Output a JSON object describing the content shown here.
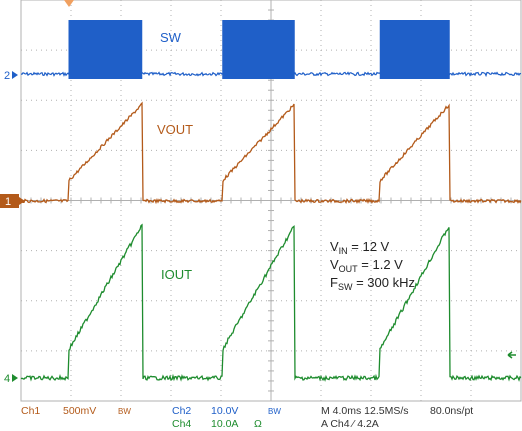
{
  "colors": {
    "ch1": "#b35a1a",
    "ch2": "#1f5fc8",
    "ch4": "#1e8c2e",
    "grid": "#b0b0b0",
    "text_dark": "#333333",
    "trigger_marker": "#f0a060"
  },
  "channel_markers": {
    "ch1": "1",
    "ch2": "2",
    "ch4": "4"
  },
  "labels": {
    "sw": "SW",
    "vout": "VOUT",
    "iout": "IOUT"
  },
  "conditions": {
    "vin_main": "V",
    "vin_sub": "IN",
    "vin_value": " = 12 V",
    "vout_main": "V",
    "vout_sub": "OUT",
    "vout_value": " = 1.2 V",
    "fsw_main": "F",
    "fsw_sub": "SW",
    "fsw_value": " = 300 kHz"
  },
  "status_bar": {
    "ch1_name": "Ch1",
    "ch1_scale": "500mV",
    "ch1_bw": "BW",
    "ch2_name": "Ch2",
    "ch2_scale": "10.0V",
    "ch2_bw": "BW",
    "ch4_name": "Ch4",
    "ch4_scale": "10.0A",
    "ch4_unit": "Ω",
    "timebase": "M 4.0ms 12.5MS/s",
    "record": "80.0ns/pt",
    "trigger": "A  Ch4  ⁄  4.2A"
  },
  "chart_data": {
    "type": "line",
    "title": "",
    "xlabel": "",
    "ylabel": "",
    "x_divisions": 10,
    "y_divisions": 8,
    "time_per_div_ms": 4.0,
    "series": [
      {
        "name": "SW",
        "color": "#1f5fc8",
        "description": "switch node: bursts of switching between low and high"
      },
      {
        "name": "VOUT",
        "color": "#b35a1a",
        "description": "output voltage ramps up during each burst, then drops"
      },
      {
        "name": "IOUT",
        "color": "#1e8c2e",
        "description": "output current ramps up linearly during each burst, then drops"
      }
    ],
    "bursts_div": [
      [
        1.9,
        4.85
      ],
      [
        8.05,
        10.95
      ],
      [
        14.35,
        17.15
      ]
    ]
  }
}
